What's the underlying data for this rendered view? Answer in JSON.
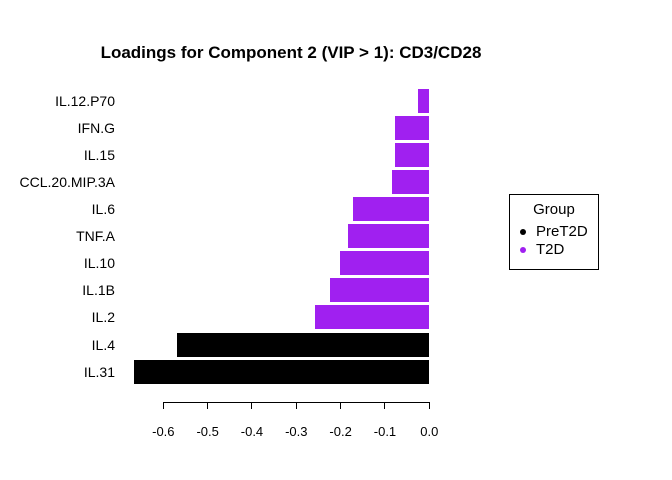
{
  "title": "Loadings for Component 2 (VIP > 1): CD3/CD28",
  "colors": {
    "background": "#ffffff",
    "axis": "#000000",
    "text": "#000000",
    "pret2d": "#000000",
    "t2d": "#a020f0"
  },
  "legend": {
    "title": "Group",
    "items": [
      {
        "label": "PreT2D",
        "color": "#000000"
      },
      {
        "label": "T2D",
        "color": "#a020f0"
      }
    ]
  },
  "chart_data": {
    "type": "bar",
    "orientation": "horizontal",
    "title": "Loadings for Component 2 (VIP > 1): CD3/CD28",
    "xlabel": "",
    "ylabel": "",
    "categories": [
      "IL.12.P70",
      "IFN.G",
      "IL.15",
      "CCL.20.MIP.3A",
      "IL.6",
      "TNF.A",
      "IL.10",
      "IL.1B",
      "IL.2",
      "IL.4",
      "IL.31"
    ],
    "values": [
      -0.026,
      -0.077,
      -0.077,
      -0.084,
      -0.172,
      -0.184,
      -0.202,
      -0.223,
      -0.258,
      -0.57,
      -0.667
    ],
    "groups": [
      "T2D",
      "T2D",
      "T2D",
      "T2D",
      "T2D",
      "T2D",
      "T2D",
      "T2D",
      "T2D",
      "PreT2D",
      "PreT2D"
    ],
    "xticks": [
      -0.6,
      -0.5,
      -0.4,
      -0.3,
      -0.2,
      -0.1,
      0.0
    ],
    "xtick_labels": [
      "-0.6",
      "-0.5",
      "-0.4",
      "-0.3",
      "-0.2",
      "-0.1",
      "0.0"
    ],
    "xlim": [
      -0.67,
      0.0
    ],
    "grid": "off",
    "legend_position": "right",
    "legend_title": "Group"
  }
}
